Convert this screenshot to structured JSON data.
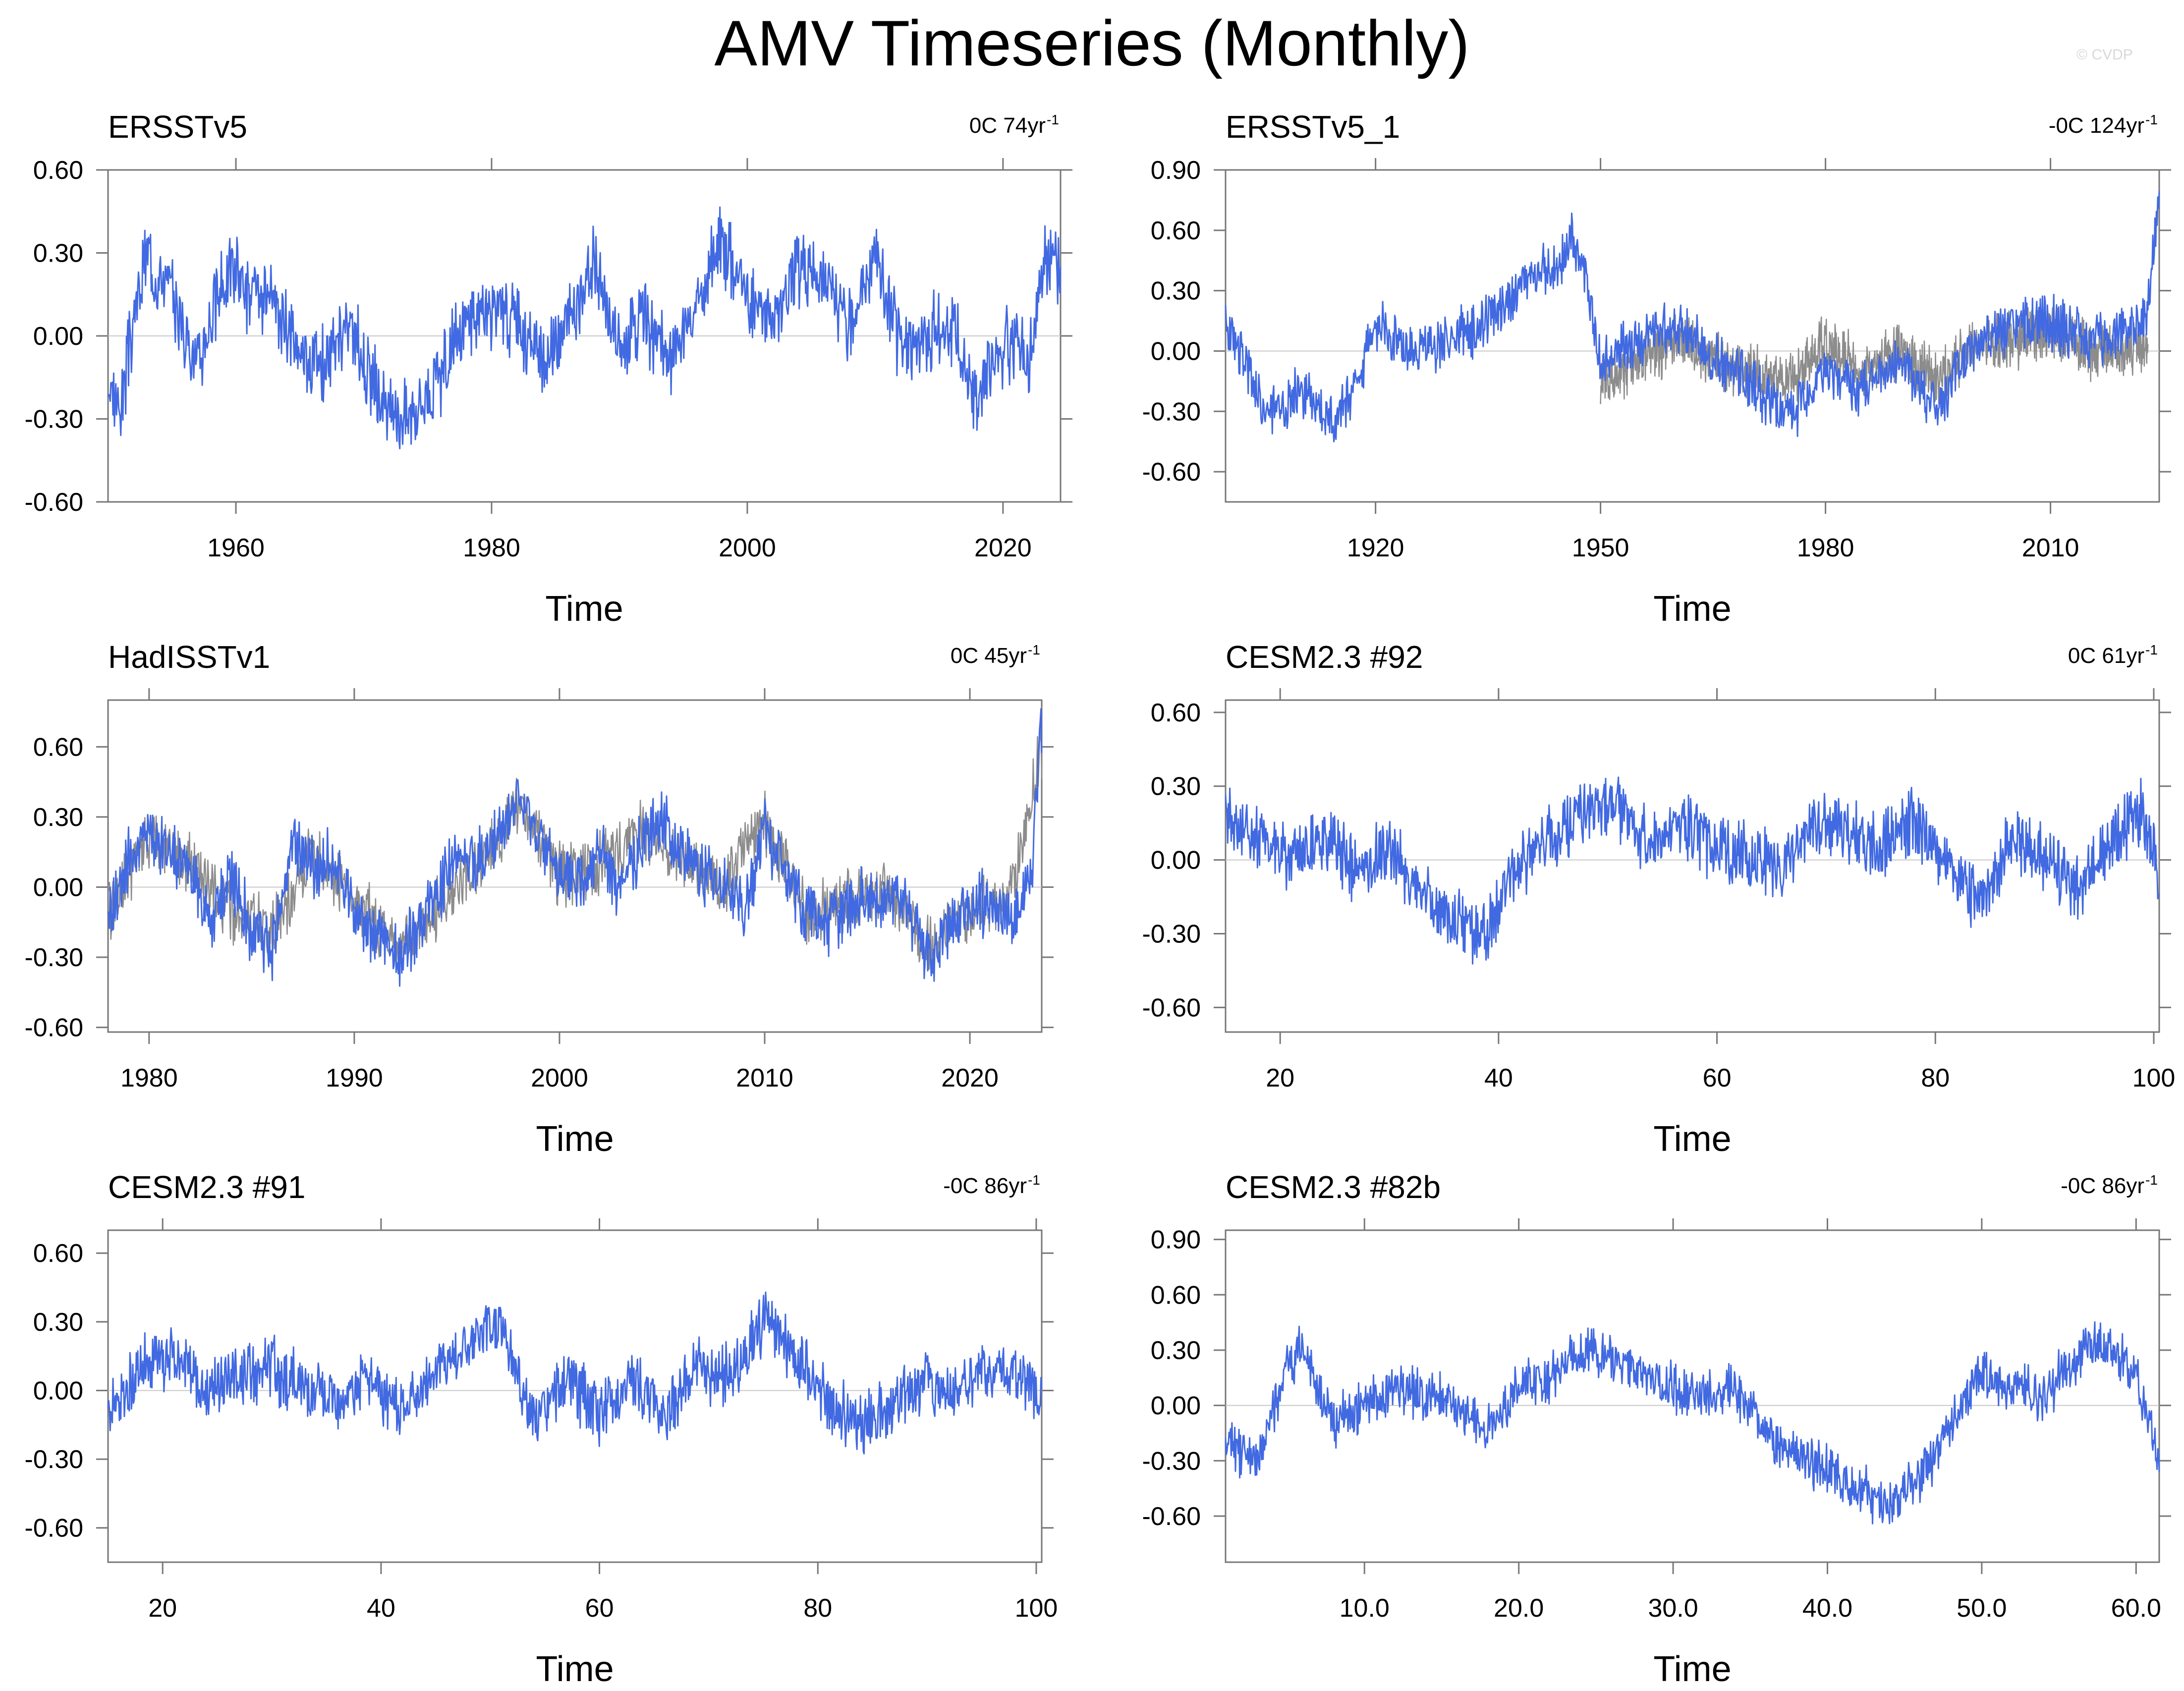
{
  "page_title": "AMV Timeseries (Monthly)",
  "watermark": "© CVDP",
  "colors": {
    "primary": "#4169e1",
    "secondary": "#8c8c8c",
    "zero_line": "#c8c8c8"
  },
  "chart_data": [
    {
      "type": "line",
      "title": "ERSSTv5",
      "trend_label": "0C 74yr",
      "trend_superscript": "-1",
      "xlabel": "Time",
      "xlim": [
        1950,
        2024.5
      ],
      "ylim": [
        -0.6,
        0.6
      ],
      "yticks": [
        -0.6,
        -0.3,
        0,
        0.3,
        0.6
      ],
      "ytick_labels": [
        "-0.60",
        "-0.30",
        "0.00",
        "0.30",
        "0.60"
      ],
      "xticks": [
        1960,
        1980,
        2000,
        2020
      ],
      "xtick_labels": [
        "1960",
        "1980",
        "2000",
        "2020"
      ],
      "series": [
        {
          "role": "primary",
          "color": "#4169e1",
          "x": [
            1950,
            1951,
            1952,
            1953,
            1955,
            1957,
            1959,
            1960,
            1961,
            1963,
            1965,
            1967,
            1969,
            1970,
            1972,
            1974,
            1976,
            1978,
            1980,
            1982,
            1984,
            1986,
            1988,
            1990,
            1992,
            1994,
            1996,
            1998,
            2000,
            2002,
            2004,
            2006,
            2008,
            2010,
            2012,
            2014,
            2016,
            2018,
            2019,
            2021,
            2022,
            2023,
            2024,
            2024.5
          ],
          "y": [
            -0.2,
            -0.25,
            0.05,
            0.3,
            0.15,
            -0.1,
            0.2,
            0.25,
            0.15,
            0.1,
            -0.05,
            -0.1,
            0.05,
            -0.1,
            -0.3,
            -0.25,
            -0.15,
            0.05,
            0.1,
            0.05,
            -0.1,
            0.05,
            0.25,
            -0.05,
            0.05,
            -0.1,
            0.1,
            0.35,
            0.15,
            0.05,
            0.25,
            0.2,
            0.05,
            0.3,
            -0.05,
            0.0,
            0.05,
            -0.25,
            -0.1,
            0.0,
            -0.1,
            0.25,
            0.3,
            0.18
          ]
        }
      ]
    },
    {
      "type": "line",
      "title": "ERSSTv5_1",
      "trend_label": "-0C 124yr",
      "trend_superscript": "-1",
      "xlabel": "Time",
      "xlim": [
        1900,
        2024.5
      ],
      "ylim": [
        -0.75,
        0.9
      ],
      "yticks": [
        -0.6,
        -0.3,
        0,
        0.3,
        0.6,
        0.9
      ],
      "ytick_labels": [
        "-0.60",
        "-0.30",
        "0.00",
        "0.30",
        "0.60",
        "0.90"
      ],
      "xticks": [
        1920,
        1950,
        1980,
        2010
      ],
      "xtick_labels": [
        "1920",
        "1950",
        "1980",
        "2010"
      ],
      "series": [
        {
          "role": "primary",
          "color": "#4169e1",
          "x": [
            1900,
            1902,
            1905,
            1910,
            1914,
            1916,
            1918,
            1920,
            1925,
            1930,
            1935,
            1940,
            1944,
            1946,
            1948,
            1950,
            1955,
            1960,
            1965,
            1970,
            1975,
            1980,
            1985,
            1990,
            1995,
            2000,
            2005,
            2010,
            2015,
            2020,
            2023,
            2024.5
          ],
          "y": [
            0.1,
            0.0,
            -0.3,
            -0.2,
            -0.35,
            -0.25,
            -0.1,
            0.15,
            0.0,
            0.05,
            0.15,
            0.35,
            0.4,
            0.55,
            0.4,
            -0.05,
            0.05,
            0.15,
            -0.05,
            -0.15,
            -0.35,
            -0.1,
            -0.2,
            -0.05,
            -0.3,
            0.05,
            0.1,
            0.15,
            0.05,
            0.1,
            0.2,
            0.8
          ]
        },
        {
          "role": "secondary",
          "color": "#8c8c8c",
          "x": [
            1950,
            1955,
            1960,
            1965,
            1970,
            1975,
            1980,
            1985,
            1990,
            1995,
            2000,
            2005,
            2010,
            2015,
            2020,
            2023
          ],
          "y": [
            -0.15,
            -0.05,
            0.05,
            -0.05,
            -0.1,
            -0.15,
            0.05,
            -0.1,
            0.0,
            -0.15,
            0.05,
            0.05,
            0.1,
            0.0,
            0.0,
            0.05
          ]
        }
      ]
    },
    {
      "type": "line",
      "title": "HadISSTv1",
      "trend_label": "0C 45yr",
      "trend_superscript": "-1",
      "xlabel": "Time",
      "xlim": [
        1978,
        2023.5
      ],
      "ylim": [
        -0.62,
        0.8
      ],
      "yticks": [
        -0.6,
        -0.3,
        0,
        0.3,
        0.6
      ],
      "ytick_labels": [
        "-0.60",
        "-0.30",
        "0.00",
        "0.30",
        "0.60"
      ],
      "xticks": [
        1980,
        1990,
        2000,
        2010,
        2020
      ],
      "xtick_labels": [
        "1980",
        "1990",
        "2000",
        "2010",
        "2020"
      ],
      "series": [
        {
          "role": "primary",
          "color": "#4169e1",
          "x": [
            1978,
            1979,
            1980,
            1981,
            1982,
            1983,
            1984,
            1985,
            1986,
            1987,
            1988,
            1989,
            1990,
            1991,
            1992,
            1993,
            1994,
            1995,
            1996,
            1997,
            1998,
            1999,
            2000,
            2001,
            2002,
            2003,
            2004,
            2005,
            2006,
            2007,
            2008,
            2009,
            2010,
            2011,
            2012,
            2013,
            2014,
            2015,
            2016,
            2017,
            2018,
            2019,
            2020,
            2021,
            2022,
            2023,
            2023.5
          ],
          "y": [
            -0.15,
            0.1,
            0.2,
            0.15,
            0.1,
            -0.15,
            0.05,
            -0.2,
            -0.25,
            0.2,
            0.1,
            0.1,
            -0.1,
            -0.2,
            -0.3,
            -0.2,
            -0.05,
            0.15,
            0.1,
            0.2,
            0.35,
            0.2,
            0.05,
            0.0,
            0.15,
            -0.05,
            0.2,
            0.3,
            0.15,
            0.05,
            0.0,
            -0.1,
            0.25,
            0.05,
            -0.1,
            -0.15,
            -0.1,
            -0.05,
            -0.05,
            -0.1,
            -0.3,
            -0.15,
            -0.1,
            -0.05,
            -0.15,
            0.05,
            0.7
          ]
        },
        {
          "role": "secondary",
          "color": "#8c8c8c",
          "x": [
            1978,
            1980,
            1982,
            1984,
            1986,
            1988,
            1990,
            1992,
            1994,
            1996,
            1998,
            2000,
            2002,
            2004,
            2006,
            2008,
            2010,
            2012,
            2014,
            2016,
            2018,
            2020,
            2022,
            2023.5
          ],
          "y": [
            -0.1,
            0.2,
            0.1,
            -0.1,
            -0.2,
            0.15,
            -0.05,
            -0.25,
            -0.1,
            0.1,
            0.35,
            0.05,
            0.1,
            0.25,
            0.1,
            0.0,
            0.3,
            -0.1,
            -0.05,
            0.0,
            -0.25,
            -0.1,
            -0.05,
            0.6
          ]
        }
      ]
    },
    {
      "type": "line",
      "title": "CESM2.3 #92",
      "trend_label": "0C 61yr",
      "trend_superscript": "-1",
      "xlabel": "Time",
      "xlim": [
        15,
        100.5
      ],
      "ylim": [
        -0.7,
        0.65
      ],
      "yticks": [
        -0.6,
        -0.3,
        0,
        0.3,
        0.6
      ],
      "ytick_labels": [
        "-0.60",
        "-0.30",
        "0.00",
        "0.30",
        "0.60"
      ],
      "xticks": [
        20,
        40,
        60,
        80,
        100
      ],
      "xtick_labels": [
        "20",
        "40",
        "60",
        "80",
        "100"
      ],
      "series": [
        {
          "role": "primary",
          "color": "#4169e1",
          "x": [
            15,
            18,
            21,
            24,
            27,
            30,
            33,
            36,
            39,
            42,
            45,
            48,
            51,
            54,
            57,
            60,
            63,
            66,
            69,
            72,
            75,
            78,
            81,
            84,
            87,
            90,
            93,
            96,
            99,
            100.5
          ],
          "y": [
            0.15,
            0.1,
            0.0,
            0.1,
            -0.05,
            0.05,
            -0.15,
            -0.25,
            -0.3,
            0.0,
            0.1,
            0.2,
            0.2,
            0.05,
            0.15,
            0.05,
            0.0,
            -0.05,
            0.15,
            0.1,
            0.05,
            0.15,
            0.0,
            -0.2,
            0.1,
            0.0,
            -0.1,
            0.05,
            0.2,
            -0.1
          ]
        }
      ]
    },
    {
      "type": "line",
      "title": "CESM2.3 #91",
      "trend_label": "-0C 86yr",
      "trend_superscript": "-1",
      "xlabel": "Time",
      "xlim": [
        15,
        100.5
      ],
      "ylim": [
        -0.75,
        0.7
      ],
      "yticks": [
        -0.6,
        -0.3,
        0,
        0.3,
        0.6
      ],
      "ytick_labels": [
        "-0.60",
        "-0.30",
        "0.00",
        "0.30",
        "0.60"
      ],
      "xticks": [
        20,
        40,
        60,
        80,
        100
      ],
      "xtick_labels": [
        "20",
        "40",
        "60",
        "80",
        "100"
      ],
      "series": [
        {
          "role": "primary",
          "color": "#4169e1",
          "x": [
            15,
            18,
            21,
            24,
            27,
            30,
            33,
            36,
            39,
            42,
            45,
            48,
            51,
            54,
            57,
            60,
            63,
            66,
            69,
            72,
            75,
            78,
            81,
            84,
            87,
            90,
            93,
            96,
            99,
            100.5
          ],
          "y": [
            -0.1,
            0.1,
            0.15,
            0.0,
            0.05,
            0.1,
            0.0,
            -0.05,
            0.05,
            -0.1,
            0.1,
            0.2,
            0.3,
            -0.15,
            0.05,
            -0.1,
            0.05,
            -0.1,
            0.1,
            0.05,
            0.3,
            0.15,
            -0.05,
            -0.15,
            -0.05,
            0.05,
            0.0,
            0.1,
            0.05,
            -0.05
          ]
        }
      ]
    },
    {
      "type": "line",
      "title": "CESM2.3 #82b",
      "trend_label": "-0C 86yr",
      "trend_superscript": "-1",
      "xlabel": "Time",
      "xlim": [
        1,
        61.5
      ],
      "ylim": [
        -0.85,
        0.95
      ],
      "yticks": [
        -0.6,
        -0.3,
        0,
        0.3,
        0.6,
        0.9
      ],
      "ytick_labels": [
        "-0.60",
        "-0.30",
        "0.00",
        "0.30",
        "0.60",
        "0.90"
      ],
      "xticks": [
        10,
        20,
        30,
        40,
        50,
        60
      ],
      "xtick_labels": [
        "10.0",
        "20.0",
        "30.0",
        "40.0",
        "50.0",
        "60.0"
      ],
      "series": [
        {
          "role": "primary",
          "color": "#4169e1",
          "x": [
            1,
            3,
            5,
            6,
            8,
            10,
            12,
            14,
            16,
            18,
            20,
            22,
            24,
            26,
            28,
            30,
            32,
            34,
            36,
            38,
            40,
            42,
            44,
            46,
            48,
            50,
            52,
            54,
            56,
            58,
            60,
            61.5
          ],
          "y": [
            -0.2,
            -0.3,
            0.2,
            0.3,
            -0.1,
            0.0,
            0.1,
            0.05,
            0.0,
            -0.1,
            0.1,
            0.15,
            0.3,
            0.25,
            0.15,
            0.1,
            0.05,
            0.1,
            -0.15,
            -0.25,
            -0.35,
            -0.45,
            -0.55,
            -0.4,
            -0.1,
            0.15,
            0.1,
            0.05,
            0.25,
            0.35,
            0.15,
            -0.3
          ]
        }
      ]
    }
  ]
}
